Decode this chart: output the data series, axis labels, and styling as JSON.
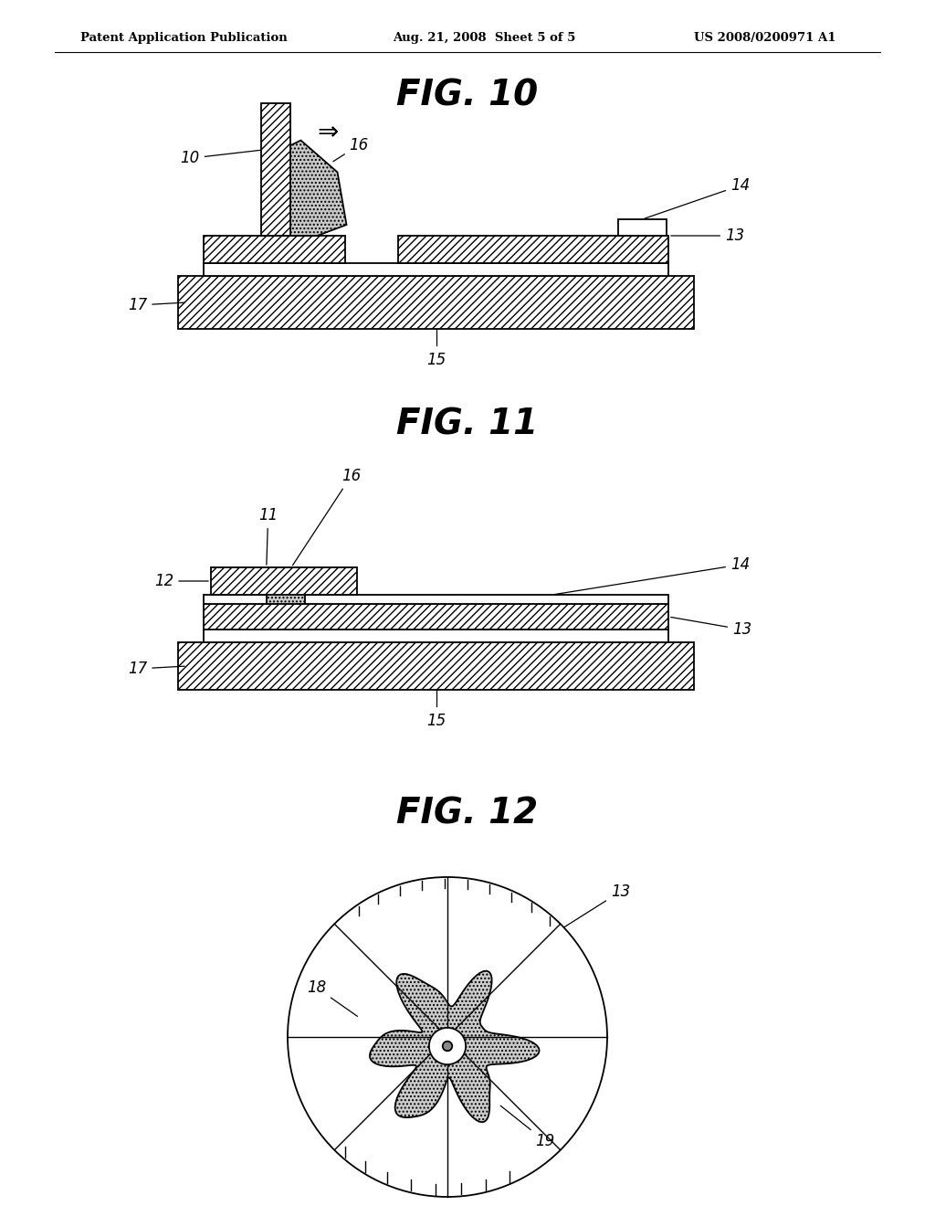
{
  "background_color": "#ffffff",
  "header_left": "Patent Application Publication",
  "header_mid": "Aug. 21, 2008  Sheet 5 of 5",
  "header_right": "US 2008/0200971 A1",
  "fig10_title": "FIG. 10",
  "fig11_title": "FIG. 11",
  "fig12_title": "FIG. 12",
  "line_color": "#000000"
}
